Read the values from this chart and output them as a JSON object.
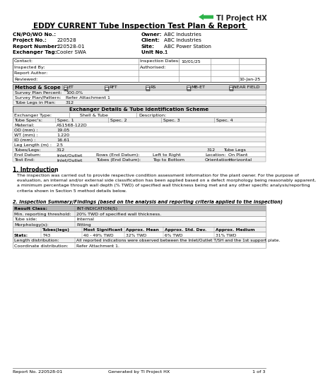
{
  "title": "EDDY CURRENT Tube Inspection Test Plan & Report",
  "logo_text": "TI Project HX",
  "header_fields": {
    "CN_PO_WO": "",
    "Project_No": "220528",
    "Report_Number": "220528-01",
    "Exchanger_Tag": "Cooler SWA",
    "Owner": "ABC Industries",
    "Client": "ABC Industries",
    "Site": "ABC Power Station",
    "Unit_No": "1"
  },
  "contact_table": {
    "Inspection_Dates": "10/01/25",
    "Reviewed_date": "10-Jan-25"
  },
  "method_scope": {
    "ET": true,
    "RFT": false,
    "RS": false,
    "MR_ET": false,
    "NEAR_FIELD": false
  },
  "survey_fields": {
    "Survey_Plan_Percent": "100.0%",
    "Survey_Plan_Pattern": "Refer Attachment 1",
    "Tube_Legs_in_Plan": "312"
  },
  "exchanger_details": {
    "Exchanger_Type": "Shell & Tube",
    "Tube_Specs": [
      "Spec. 1",
      "Spec. 2",
      "Spec. 3",
      "Spec. 4"
    ],
    "Material": "AS1568-122D",
    "OD_mm": "19.05",
    "WT_mm": "1.220",
    "ID_mm": "16.61",
    "Leg_Length_m": "2.5",
    "Tubes_Legs": "312",
    "End_Datum": "Inlet/Outlet",
    "Rows_End_Datum": "Left to Right",
    "Location": "On Plant",
    "Test_End": "Inlet/Outlet",
    "Tubes_End_Datum": "Top to Bottom",
    "Orientation": "Horizontal"
  },
  "intro_heading": "1. Introduction",
  "intro_text": "   The inspection was carried out to provide respective condition assessment information for the plant owner. For the purpose of\n   evaluation, an internal and/or external side classification has been applied based on a defect morphology being reasonably apparent,\n   a minimum percentage through wall depth (% TWD) of specified wall thickness being met and any other specific analysis/reporting\n   criteria shown in Section 5 method details below.",
  "section2_heading": "2. Inspection Summary/Findings (based on the analysis and reporting criteria applied to the inspection)",
  "summary_table": {
    "Result_Class": "INT-INDICATION(S)",
    "Min_reporting_threshold": "20% TWD of specified wall thickness.",
    "Tube_side": "Internal",
    "Morphology": "Pitting",
    "Stats_header": [
      "Tubes(legs)",
      "Most Significant",
      "Approx. Mean",
      "Approx. Std. Dev.",
      "Approx. Medium"
    ],
    "Stats_values": [
      "T43",
      "40 - 49% TWD",
      "32% TWD",
      "6% TWD",
      "31% TWD"
    ],
    "Length_distribution": "All reported indications were observed between the Inlet/Outlet T/SH and the 1st support plate.",
    "Coordinate_distribution": "Refer Attachment 1."
  },
  "footer_left": "Report No. 220528-01",
  "footer_center": "Generated by TI Project HX",
  "footer_right": "1 of 3",
  "bg_color": "#ffffff",
  "green_color": "#2db34a",
  "table_border": "#888888",
  "header_bg": "#d4d4d4",
  "row_alt_bg": "#efefef",
  "section2_hdr_bg": "#b8b8b8"
}
